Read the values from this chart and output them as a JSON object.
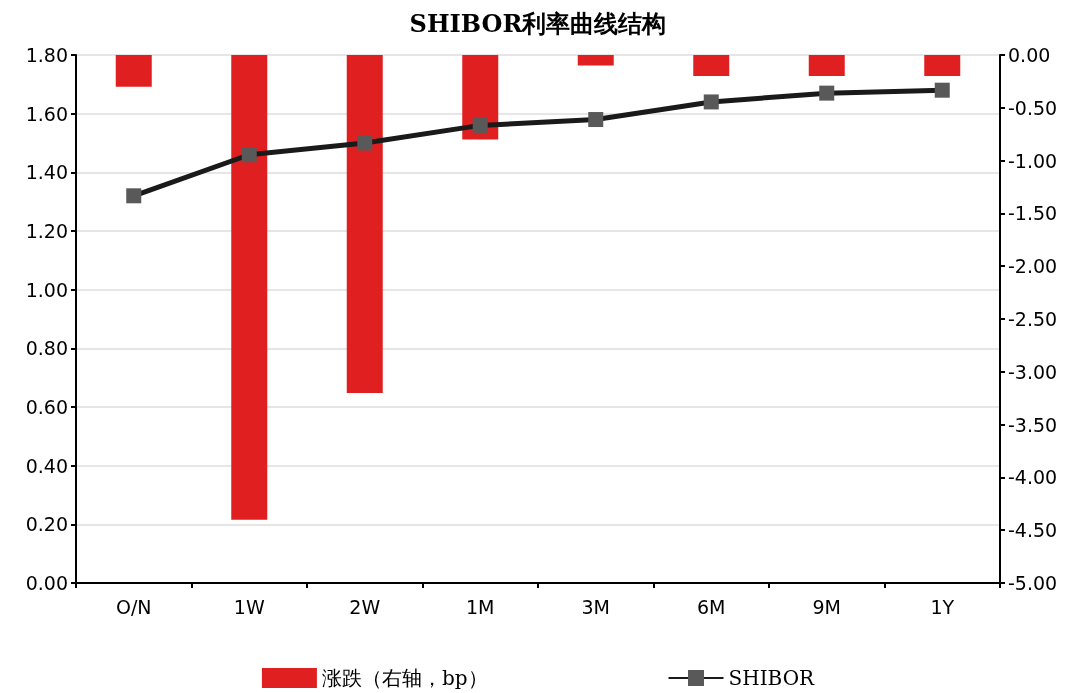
{
  "chart_data": {
    "type": "line",
    "title": "SHIBOR利率曲线结构",
    "categories": [
      "O/N",
      "1W",
      "2W",
      "1M",
      "3M",
      "6M",
      "9M",
      "1Y"
    ],
    "series": [
      {
        "name": "涨跌（右轴，bp）",
        "type": "bar",
        "axis": "y2",
        "color": "#e02020",
        "values": [
          -0.3,
          -4.4,
          -3.2,
          -0.8,
          -0.1,
          -0.2,
          -0.2,
          -0.2
        ]
      },
      {
        "name": "SHIBOR",
        "color": "#1a1a1a",
        "values": [
          1.32,
          1.46,
          1.5,
          1.56,
          1.58,
          1.64,
          1.67,
          1.68
        ]
      }
    ],
    "ylim": [
      0,
      1.8
    ],
    "yticks": [
      {
        "value": 0,
        "label": "0.00"
      },
      {
        "value": 0.2,
        "label": "0.20"
      },
      {
        "value": 0.4,
        "label": "0.40"
      },
      {
        "value": 0.6,
        "label": "0.60"
      },
      {
        "value": 0.8,
        "label": "0.80"
      },
      {
        "value": 1,
        "label": "1.00"
      },
      {
        "value": 1.2,
        "label": "1.20"
      },
      {
        "value": 1.4,
        "label": "1.40"
      },
      {
        "value": 1.6,
        "label": "1.60"
      },
      {
        "value": 1.8,
        "label": "1.80"
      }
    ],
    "y2lim": [
      -5,
      0
    ],
    "y2ticks": [
      {
        "value": -5,
        "label": "-5.00"
      },
      {
        "value": -4.5,
        "label": "-4.50"
      },
      {
        "value": -4,
        "label": "-4.00"
      },
      {
        "value": -3.5,
        "label": "-3.50"
      },
      {
        "value": -3,
        "label": "-3.00"
      },
      {
        "value": -2.5,
        "label": "-2.50"
      },
      {
        "value": -2,
        "label": "-2.00"
      },
      {
        "value": -1.5,
        "label": "-1.50"
      },
      {
        "value": -1,
        "label": "-1.00"
      },
      {
        "value": -0.5,
        "label": "-0.50"
      },
      {
        "value": 0,
        "label": "0.00"
      }
    ],
    "grid": "y",
    "legend": "bottom",
    "marker": "square",
    "line_style": "solid"
  }
}
